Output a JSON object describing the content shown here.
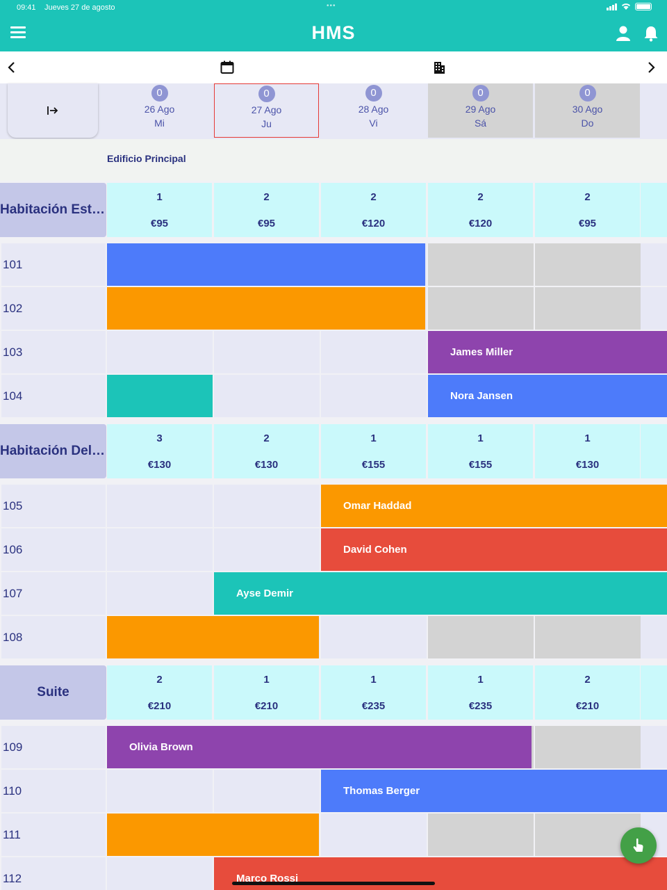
{
  "status_bar": {
    "time": "09:41",
    "date": "Jueves 27 de agosto"
  },
  "app": {
    "title": "HMS"
  },
  "icons": {
    "menu": "menu-icon",
    "user": "user-icon",
    "bell": "bell-icon",
    "prev": "chevron-left-icon",
    "calendar": "calendar-icon",
    "building": "building-icon",
    "next": "chevron-right-icon",
    "collapse": "collapse-arrow-icon",
    "fab": "touch-icon"
  },
  "colors": {
    "primary": "#1cc4b8",
    "blue": "#4d7bfa",
    "orange": "#fb9800",
    "purple": "#8e44ad",
    "teal": "#1cc4b8",
    "red": "#e74c3c",
    "fab": "#43a047"
  },
  "days": [
    {
      "count": "0",
      "date": "26 Ago",
      "weekday": "Mi",
      "weekend": false,
      "today": false
    },
    {
      "count": "0",
      "date": "27 Ago",
      "weekday": "Ju",
      "weekend": false,
      "today": true
    },
    {
      "count": "0",
      "date": "28 Ago",
      "weekday": "Vi",
      "weekend": false,
      "today": false
    },
    {
      "count": "0",
      "date": "29 Ago",
      "weekday": "Sá",
      "weekend": true,
      "today": false
    },
    {
      "count": "0",
      "date": "30 Ago",
      "weekday": "Do",
      "weekend": true,
      "today": false
    }
  ],
  "building": "Edificio Principal",
  "categories": [
    {
      "name": "Habitación Estándar",
      "center": false,
      "availability": [
        "1",
        "2",
        "2",
        "2",
        "2"
      ],
      "prices": [
        "€95",
        "€95",
        "€120",
        "€120",
        "€95"
      ],
      "rooms": [
        {
          "number": "101",
          "reservations": [
            {
              "start": 0,
              "span": 3,
              "guest": "",
              "color": "#4d7bfa"
            }
          ]
        },
        {
          "number": "102",
          "reservations": [
            {
              "start": 0,
              "span": 3,
              "guest": "",
              "color": "#fb9800"
            }
          ]
        },
        {
          "number": "103",
          "reservations": [
            {
              "start": 3,
              "span": 3,
              "guest": "James Miller",
              "color": "#8e44ad"
            }
          ]
        },
        {
          "number": "104",
          "reservations": [
            {
              "start": 0,
              "span": 1,
              "guest": "",
              "color": "#1cc4b8"
            },
            {
              "start": 3,
              "span": 3,
              "guest": "Nora Jansen",
              "color": "#4d7bfa"
            }
          ]
        }
      ]
    },
    {
      "name": "Habitación Deluxe",
      "center": false,
      "availability": [
        "3",
        "2",
        "1",
        "1",
        "1"
      ],
      "prices": [
        "€130",
        "€130",
        "€155",
        "€155",
        "€130"
      ],
      "rooms": [
        {
          "number": "105",
          "reservations": [
            {
              "start": 2,
              "span": 4,
              "guest": "Omar Haddad",
              "color": "#fb9800"
            }
          ]
        },
        {
          "number": "106",
          "reservations": [
            {
              "start": 2,
              "span": 4,
              "guest": "David Cohen",
              "color": "#e74c3c"
            }
          ]
        },
        {
          "number": "107",
          "reservations": [
            {
              "start": 1,
              "span": 5,
              "guest": "Ayse Demir",
              "color": "#1cc4b8"
            }
          ]
        },
        {
          "number": "108",
          "reservations": [
            {
              "start": 0,
              "span": 2,
              "guest": "",
              "color": "#fb9800"
            }
          ]
        }
      ]
    },
    {
      "name": "Suite",
      "center": true,
      "availability": [
        "2",
        "1",
        "1",
        "1",
        "2"
      ],
      "prices": [
        "€210",
        "€210",
        "€235",
        "€235",
        "€210"
      ],
      "rooms": [
        {
          "number": "109",
          "reservations": [
            {
              "start": 0,
              "span": 4,
              "guest": "Olivia Brown",
              "color": "#8e44ad"
            }
          ]
        },
        {
          "number": "110",
          "reservations": [
            {
              "start": 2,
              "span": 3,
              "guest": "Thomas Berger",
              "color": "#4d7bfa"
            }
          ]
        },
        {
          "number": "111",
          "reservations": [
            {
              "start": 0,
              "span": 2,
              "guest": "",
              "color": "#fb9800"
            }
          ]
        },
        {
          "number": "112",
          "reservations": [
            {
              "start": 1,
              "span": 5,
              "guest": "Marco Rossi",
              "color": "#e74c3c"
            }
          ]
        }
      ]
    }
  ]
}
